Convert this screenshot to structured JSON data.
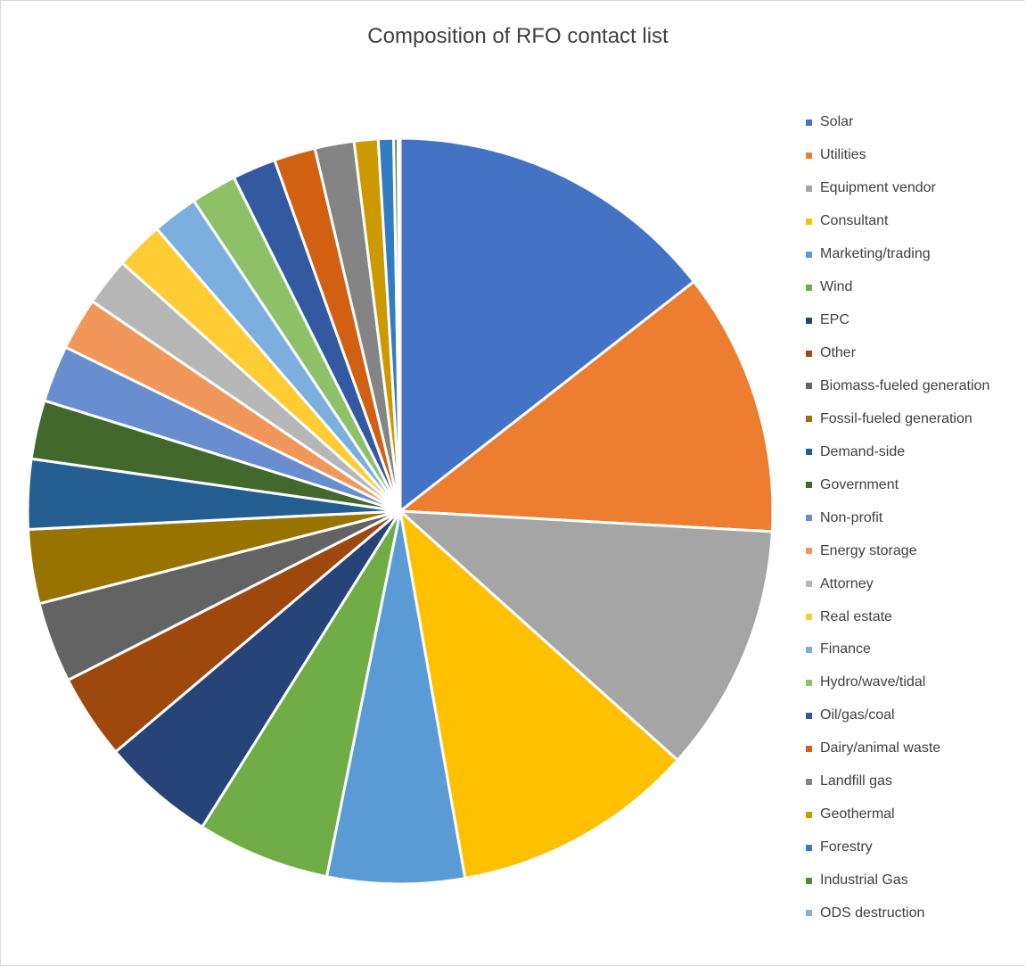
{
  "chart_data": {
    "type": "pie",
    "title": "Composition of RFO contact list",
    "legend_position": "right",
    "start_angle_deg": 0,
    "direction": "clockwise",
    "categories": [
      "Solar",
      "Utilities",
      "Equipment vendor",
      "Consultant",
      "Marketing/trading",
      "Wind",
      "EPC",
      "Other",
      "Biomass-fueled generation",
      "Fossil-fueled generation",
      "Demand-side",
      "Government",
      "Non-profit",
      "Energy storage",
      "Attorney",
      "Real estate",
      "Finance",
      "Hydro/wave/tidal",
      "Oil/gas/coal",
      "Dairy/animal waste",
      "Landfill gas",
      "Geothermal",
      "Forestry",
      "Industrial Gas",
      "ODS destruction"
    ],
    "values": [
      15.3,
      12.1,
      11.4,
      11.2,
      6.3,
      6.1,
      5.2,
      3.9,
      3.7,
      3.4,
      3.2,
      2.7,
      2.6,
      2.4,
      2.2,
      2.2,
      2.1,
      2.1,
      2.0,
      1.9,
      1.8,
      1.1,
      0.7,
      0.2,
      0.1
    ],
    "colors": [
      "#4472C4",
      "#ED7D31",
      "#A5A5A5",
      "#FFC000",
      "#5B9BD5",
      "#70AD47",
      "#264478",
      "#9E480E",
      "#636363",
      "#997300",
      "#255E91",
      "#43682B",
      "#698ED0",
      "#F1975A",
      "#B7B7B7",
      "#FFCD33",
      "#7CAFDD",
      "#8CC168",
      "#335AA1",
      "#D26012",
      "#848484",
      "#CC9A00",
      "#327DC2",
      "#5A8A39",
      "#8FAADC"
    ]
  }
}
